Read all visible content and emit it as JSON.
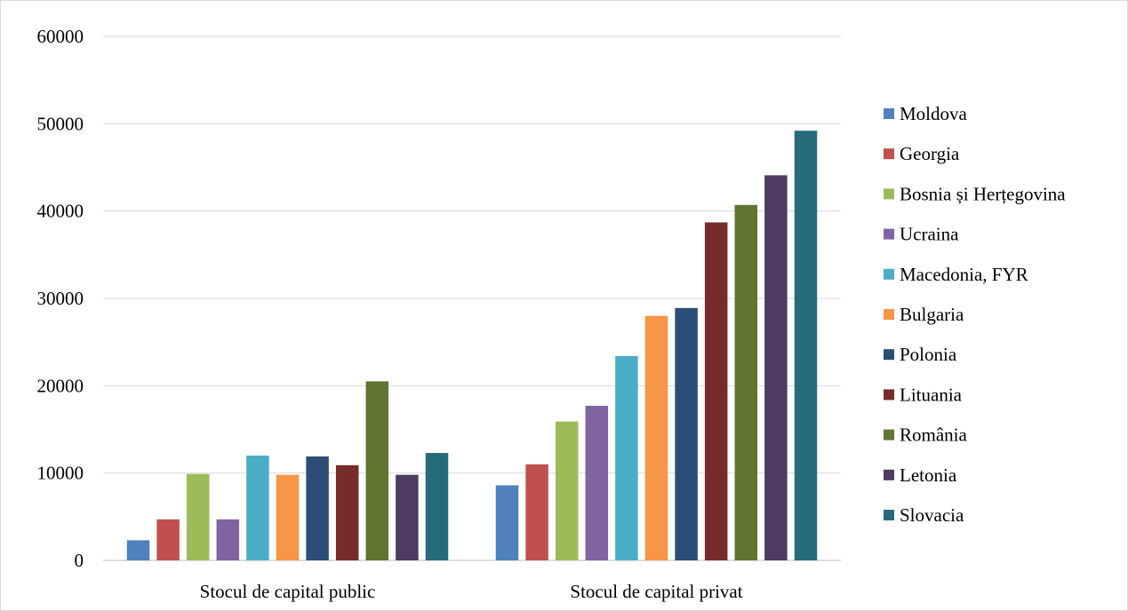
{
  "chart_data": {
    "type": "bar",
    "title": "",
    "xlabel": "",
    "ylabel": "",
    "ylim": [
      0,
      60000
    ],
    "yticks": [
      0,
      10000,
      20000,
      30000,
      40000,
      50000,
      60000
    ],
    "grid": true,
    "legend_position": "right",
    "categories": [
      "Stocul de capital public",
      "Stocul de capital privat"
    ],
    "series": [
      {
        "name": "Moldova",
        "color": "#4F81BD",
        "values": [
          2300,
          8600
        ]
      },
      {
        "name": "Georgia",
        "color": "#C0504D",
        "values": [
          4700,
          11000
        ]
      },
      {
        "name": "Bosnia și Herțegovina",
        "color": "#9BBB59",
        "values": [
          9900,
          15900
        ]
      },
      {
        "name": "Ucraina",
        "color": "#8064A2",
        "values": [
          4700,
          17700
        ]
      },
      {
        "name": "Macedonia, FYR",
        "color": "#4BACC6",
        "values": [
          12000,
          23400
        ]
      },
      {
        "name": "Bulgaria",
        "color": "#F79646",
        "values": [
          9800,
          28000
        ]
      },
      {
        "name": "Polonia",
        "color": "#2C4D75",
        "values": [
          11900,
          28900
        ]
      },
      {
        "name": "Lituania",
        "color": "#772C2A",
        "values": [
          10900,
          38700
        ]
      },
      {
        "name": "România",
        "color": "#5F7530",
        "values": [
          20500,
          40700
        ]
      },
      {
        "name": "Letonia",
        "color": "#4D3B62",
        "values": [
          9800,
          44100
        ]
      },
      {
        "name": "Slovacia",
        "color": "#276A7C",
        "values": [
          12300,
          49200
        ]
      }
    ]
  }
}
